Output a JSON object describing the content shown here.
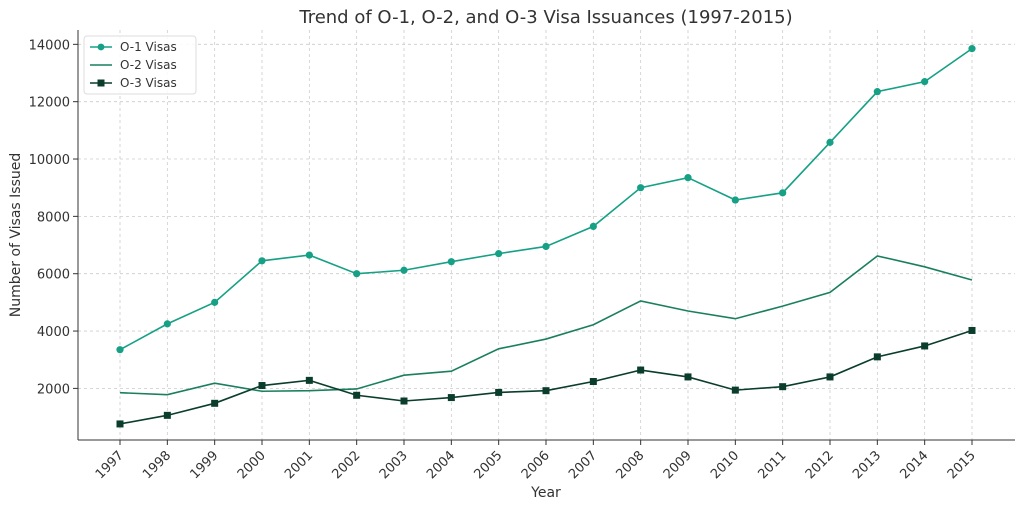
{
  "chart_data": {
    "type": "line",
    "title": "Trend of O-1, O-2, and O-3 Visa Issuances (1997-2015)",
    "xlabel": "Year",
    "ylabel": "Number of Visas Issued",
    "x": [
      1997,
      1998,
      1999,
      2000,
      2001,
      2002,
      2003,
      2004,
      2005,
      2006,
      2007,
      2008,
      2009,
      2010,
      2011,
      2012,
      2013,
      2014,
      2015
    ],
    "ylim": [
      200,
      14500
    ],
    "yticks": [
      2000,
      4000,
      6000,
      8000,
      10000,
      12000,
      14000
    ],
    "grid": true,
    "legend_position": "top-left",
    "series": [
      {
        "name": "O-1 Visas",
        "color": "#16a085",
        "marker": "circle",
        "values": [
          3350,
          4250,
          5000,
          6450,
          6650,
          6000,
          6120,
          6420,
          6700,
          6950,
          7650,
          9000,
          9350,
          8570,
          8820,
          10580,
          12350,
          12700,
          13850
        ]
      },
      {
        "name": "O-2 Visas",
        "color": "#1a7f5f",
        "marker": "none",
        "values": [
          1850,
          1780,
          2180,
          1900,
          1920,
          1980,
          2460,
          2600,
          3380,
          3720,
          4220,
          5050,
          4700,
          4430,
          4870,
          5350,
          6620,
          6240,
          5780
        ]
      },
      {
        "name": "O-3 Visas",
        "color": "#0b3d2c",
        "marker": "square",
        "values": [
          760,
          1060,
          1480,
          2100,
          2280,
          1760,
          1560,
          1680,
          1860,
          1920,
          2240,
          2640,
          2400,
          1940,
          2060,
          2400,
          3100,
          3480,
          4020
        ]
      }
    ]
  }
}
